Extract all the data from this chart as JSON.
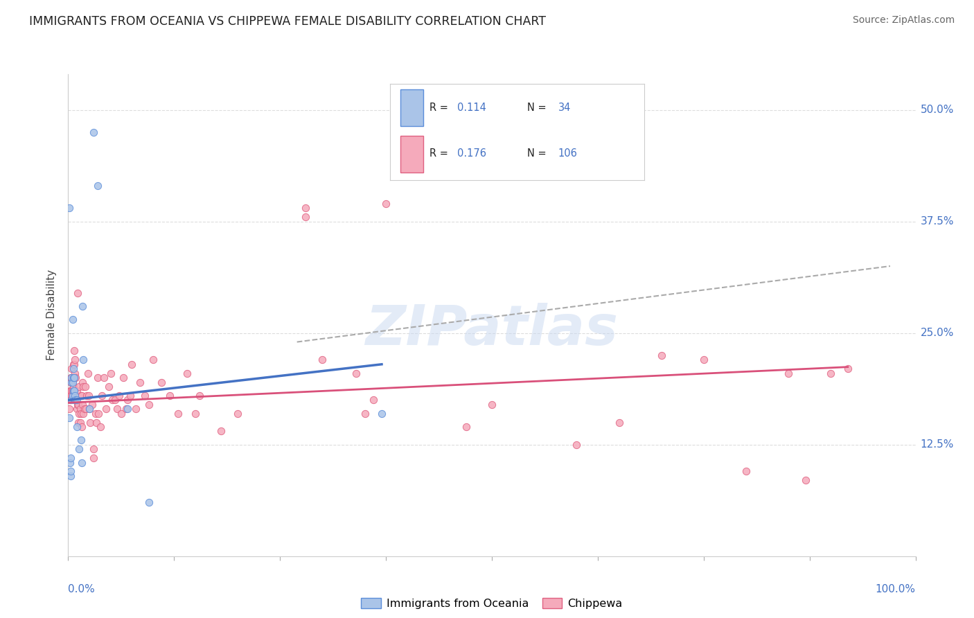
{
  "title": "IMMIGRANTS FROM OCEANIA VS CHIPPEWA FEMALE DISABILITY CORRELATION CHART",
  "source": "Source: ZipAtlas.com",
  "ylabel": "Female Disability",
  "yticks": [
    0.0,
    0.125,
    0.25,
    0.375,
    0.5
  ],
  "ytick_labels": [
    "",
    "12.5%",
    "25.0%",
    "37.5%",
    "50.0%"
  ],
  "xlim": [
    0.0,
    1.0
  ],
  "ylim": [
    0.0,
    0.54
  ],
  "watermark": "ZIPatlas",
  "scatter_oceania": [
    [
      0.001,
      0.155
    ],
    [
      0.001,
      0.39
    ],
    [
      0.002,
      0.105
    ],
    [
      0.003,
      0.11
    ],
    [
      0.003,
      0.09
    ],
    [
      0.003,
      0.095
    ],
    [
      0.004,
      0.175
    ],
    [
      0.004,
      0.195
    ],
    [
      0.004,
      0.2
    ],
    [
      0.005,
      0.18
    ],
    [
      0.005,
      0.195
    ],
    [
      0.005,
      0.265
    ],
    [
      0.006,
      0.185
    ],
    [
      0.006,
      0.2
    ],
    [
      0.006,
      0.21
    ],
    [
      0.007,
      0.2
    ],
    [
      0.007,
      0.175
    ],
    [
      0.007,
      0.185
    ],
    [
      0.008,
      0.175
    ],
    [
      0.008,
      0.18
    ],
    [
      0.009,
      0.175
    ],
    [
      0.01,
      0.175
    ],
    [
      0.01,
      0.145
    ],
    [
      0.013,
      0.12
    ],
    [
      0.015,
      0.13
    ],
    [
      0.016,
      0.105
    ],
    [
      0.017,
      0.28
    ],
    [
      0.018,
      0.22
    ],
    [
      0.025,
      0.165
    ],
    [
      0.03,
      0.475
    ],
    [
      0.035,
      0.415
    ],
    [
      0.07,
      0.165
    ],
    [
      0.095,
      0.06
    ],
    [
      0.37,
      0.16
    ]
  ],
  "scatter_chippewa": [
    [
      0.001,
      0.175
    ],
    [
      0.001,
      0.165
    ],
    [
      0.001,
      0.18
    ],
    [
      0.002,
      0.185
    ],
    [
      0.002,
      0.18
    ],
    [
      0.002,
      0.175
    ],
    [
      0.003,
      0.195
    ],
    [
      0.003,
      0.185
    ],
    [
      0.003,
      0.175
    ],
    [
      0.003,
      0.2
    ],
    [
      0.004,
      0.18
    ],
    [
      0.004,
      0.185
    ],
    [
      0.004,
      0.2
    ],
    [
      0.004,
      0.18
    ],
    [
      0.004,
      0.21
    ],
    [
      0.005,
      0.185
    ],
    [
      0.005,
      0.2
    ],
    [
      0.005,
      0.185
    ],
    [
      0.005,
      0.18
    ],
    [
      0.005,
      0.195
    ],
    [
      0.006,
      0.19
    ],
    [
      0.006,
      0.215
    ],
    [
      0.006,
      0.2
    ],
    [
      0.007,
      0.215
    ],
    [
      0.007,
      0.23
    ],
    [
      0.008,
      0.2
    ],
    [
      0.008,
      0.22
    ],
    [
      0.008,
      0.205
    ],
    [
      0.009,
      0.175
    ],
    [
      0.009,
      0.2
    ],
    [
      0.01,
      0.185
    ],
    [
      0.01,
      0.165
    ],
    [
      0.011,
      0.17
    ],
    [
      0.011,
      0.295
    ],
    [
      0.012,
      0.17
    ],
    [
      0.012,
      0.15
    ],
    [
      0.013,
      0.19
    ],
    [
      0.013,
      0.16
    ],
    [
      0.014,
      0.165
    ],
    [
      0.014,
      0.15
    ],
    [
      0.015,
      0.18
    ],
    [
      0.015,
      0.16
    ],
    [
      0.016,
      0.18
    ],
    [
      0.016,
      0.145
    ],
    [
      0.017,
      0.195
    ],
    [
      0.017,
      0.17
    ],
    [
      0.018,
      0.19
    ],
    [
      0.018,
      0.16
    ],
    [
      0.019,
      0.165
    ],
    [
      0.02,
      0.19
    ],
    [
      0.021,
      0.165
    ],
    [
      0.022,
      0.18
    ],
    [
      0.023,
      0.205
    ],
    [
      0.024,
      0.18
    ],
    [
      0.025,
      0.165
    ],
    [
      0.026,
      0.15
    ],
    [
      0.028,
      0.17
    ],
    [
      0.03,
      0.12
    ],
    [
      0.03,
      0.11
    ],
    [
      0.032,
      0.16
    ],
    [
      0.033,
      0.15
    ],
    [
      0.035,
      0.2
    ],
    [
      0.036,
      0.16
    ],
    [
      0.038,
      0.145
    ],
    [
      0.04,
      0.18
    ],
    [
      0.042,
      0.2
    ],
    [
      0.045,
      0.165
    ],
    [
      0.048,
      0.19
    ],
    [
      0.05,
      0.205
    ],
    [
      0.052,
      0.175
    ],
    [
      0.055,
      0.175
    ],
    [
      0.058,
      0.165
    ],
    [
      0.06,
      0.18
    ],
    [
      0.063,
      0.16
    ],
    [
      0.065,
      0.2
    ],
    [
      0.068,
      0.165
    ],
    [
      0.07,
      0.175
    ],
    [
      0.073,
      0.18
    ],
    [
      0.075,
      0.215
    ],
    [
      0.08,
      0.165
    ],
    [
      0.085,
      0.195
    ],
    [
      0.09,
      0.18
    ],
    [
      0.095,
      0.17
    ],
    [
      0.1,
      0.22
    ],
    [
      0.11,
      0.195
    ],
    [
      0.12,
      0.18
    ],
    [
      0.13,
      0.16
    ],
    [
      0.14,
      0.205
    ],
    [
      0.15,
      0.16
    ],
    [
      0.155,
      0.18
    ],
    [
      0.18,
      0.14
    ],
    [
      0.2,
      0.16
    ],
    [
      0.28,
      0.39
    ],
    [
      0.28,
      0.38
    ],
    [
      0.3,
      0.22
    ],
    [
      0.34,
      0.205
    ],
    [
      0.35,
      0.16
    ],
    [
      0.36,
      0.175
    ],
    [
      0.375,
      0.395
    ],
    [
      0.47,
      0.145
    ],
    [
      0.5,
      0.17
    ],
    [
      0.6,
      0.125
    ],
    [
      0.65,
      0.15
    ],
    [
      0.7,
      0.225
    ],
    [
      0.75,
      0.22
    ],
    [
      0.8,
      0.095
    ],
    [
      0.85,
      0.205
    ],
    [
      0.87,
      0.085
    ],
    [
      0.9,
      0.205
    ],
    [
      0.92,
      0.21
    ]
  ],
  "color_oceania_scatter": "#aac4e8",
  "color_oceania_edge": "#5b8dd9",
  "color_chippewa_scatter": "#f5aabb",
  "color_chippewa_edge": "#e06080",
  "color_oceania_line": "#4472c4",
  "color_chippewa_line": "#d9507a",
  "color_trend_dashed": "#aaaaaa",
  "color_title": "#222222",
  "color_source": "#666666",
  "color_ytick_labels": "#4472c4",
  "color_xtick_labels": "#4472c4",
  "color_legend_values": "#4472c4",
  "color_legend_text": "#222222",
  "color_grid": "#dddddd",
  "background_color": "#ffffff",
  "oceania_line_x": [
    0.001,
    0.37
  ],
  "oceania_line_y": [
    0.175,
    0.215
  ],
  "chippewa_line_x": [
    0.001,
    0.92
  ],
  "chippewa_line_y": [
    0.172,
    0.212
  ],
  "dashed_line_x": [
    0.27,
    0.97
  ],
  "dashed_line_y": [
    0.24,
    0.325
  ]
}
